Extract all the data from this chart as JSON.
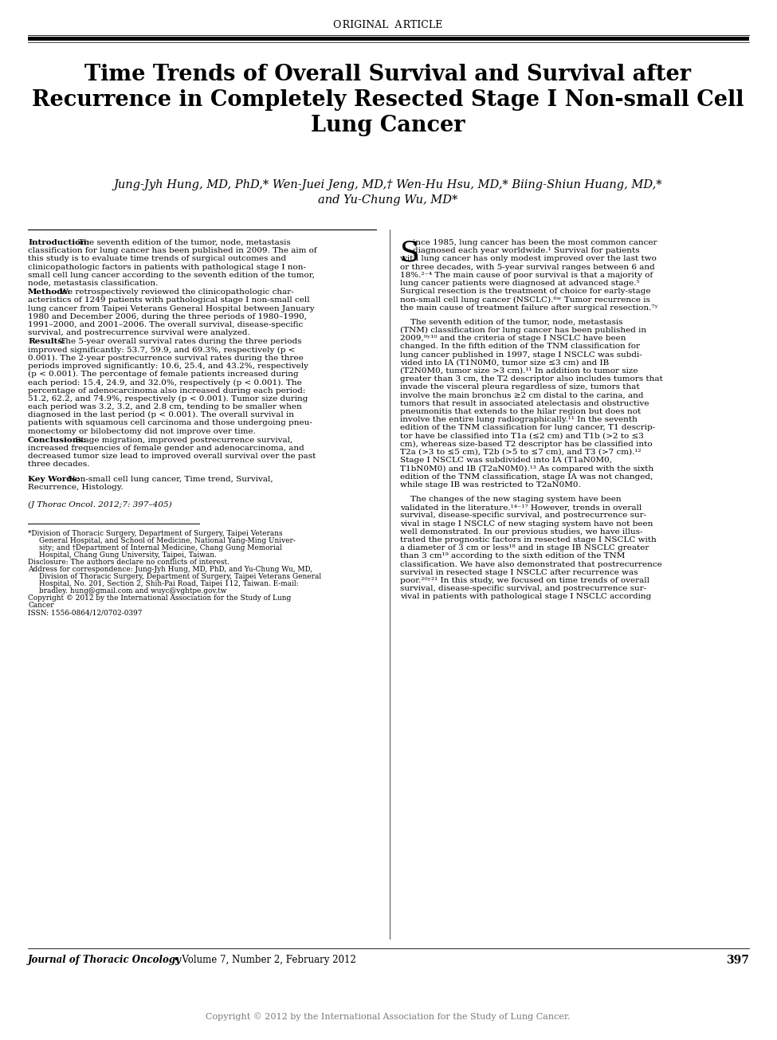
{
  "header_text": "Original Article",
  "title_line1": "Time Trends of Overall Survival and Survival after",
  "title_line2": "Recurrence in Completely Resected Stage I Non-small Cell",
  "title_line3": "Lung Cancer",
  "authors_line1": "Jung-Jyh Hung, MD, PhD,* Wen-Juei Jeng, MD,† Wen-Hu Hsu, MD,* Biing-Shiun Huang, MD,*",
  "authors_line2": "and Yu-Chung Wu, MD*",
  "footer_journal": "Journal of Thoracic Oncology",
  "footer_volume": " • Volume 7, Number 2, February 2012",
  "footer_page": "397",
  "copyright_text": "Copyright © 2012 by the International Association for the Study of Lung Cancer.",
  "lc_intro_bold": "Introduction:",
  "lc_intro_text": " The seventh edition of the tumor, node, metastasis classification for lung cancer has been published in 2009. The aim of this study is to evaluate time trends of surgical outcomes and clinicopathologic factors in patients with pathological stage I non-small cell lung cancer according to the seventh edition of the tumor, node, metastasis classification.",
  "lc_methods_bold": "Methods:",
  "lc_methods_text": " We retrospectively reviewed the clinicopathologic characteristics of 1249 patients with pathological stage I non-small cell lung cancer from Taipei Veterans General Hospital between January 1980 and December 2006, during the three periods of 1980–1990, 1991–2000, and 2001–2006. The overall survival, disease-specific survival, and postrecurrence survival were analyzed.",
  "lc_results_bold": "Results:",
  "lc_results_text": " The 5-year overall survival rates during the three periods improved significantly: 53.7, 59.9, and 69.3%, respectively (p < 0.001). The 2-year postrecurrence survival rates during the three periods improved significantly: 10.6, 25.4, and 43.2%, respectively (p < 0.001). The percentage of female patients increased during each period: 15.4, 24.9, and 32.0%, respectively (p < 0.001). The percentage of adenocarcinoma also increased during each period: 51.2, 62.2, and 74.9%, respectively (p < 0.001). Tumor size during each period was 3.2, 3.2, and 2.8 cm, tending to be smaller when diagnosed in the last period (p < 0.001). The overall survival in patients with squamous cell carcinoma and those undergoing pneumonectomy or bilobectomy did not improve over time.",
  "lc_concl_bold": "Conclusions:",
  "lc_concl_text": " Stage migration, improved postrecurrence survival, increased frequencies of female gender and adenocarcinoma, and decreased tumor size lead to improved overall survival over the past three decades.",
  "lc_kw_bold": "Key Words:",
  "lc_kw_text": " Non-small cell lung cancer, Time trend, Survival, Recurrence, Histology.",
  "lc_citation": "(J Thorac Oncol. 2012;7: 397–405)",
  "fn1_line1": "*Division of Thoracic Surgery, Department of Surgery, Taipei Veterans",
  "fn1_line2": "General Hospital, and School of Medicine, National Yang-Ming Univer-",
  "fn1_line3": "sity; and †Department of Internal Medicine, Chang Gung Memorial",
  "fn1_line4": "Hospital, Chang Gung University, Taipei, Taiwan.",
  "fn2": "Disclosure: The authors declare no conflicts of interest.",
  "fn3_line1": "Address for correspondence: Jung-Jyh Hung, MD, PhD, and Yu-Chung Wu, MD,",
  "fn3_line2": "Division of Thoracic Surgery, Department of Surgery, Taipei Veterans General",
  "fn3_line3": "Hospital, No. 201, Section 2, Shih-Pai Road, Taipei 112, Taiwan. E-mail:",
  "fn3_line4": "bradley. hung@gmail.com and wuyc@vghtpe.gov.tw",
  "fn4_line1": "Copyright © 2012 by the International Association for the Study of Lung",
  "fn4_line2": "Cancer",
  "fn5": "ISSN: 1556-0864/12/0702-0397",
  "rc_para1_drop": "S",
  "rc_para1_rest_line1": "ince 1985, lung cancer has been the most common cancer",
  "rc_para1_rest_line2": "diagnosed each year worldwide.¹ Survival for patients",
  "rc_para1_lines": [
    "with lung cancer has only modest improved over the last two",
    "or three decades, with 5-year survival ranges between 6 and",
    "18%.²⁻⁴ The main cause of poor survival is that a majority of",
    "lung cancer patients were diagnosed at advanced stage.⁵",
    "Surgical resection is the treatment of choice for early-stage",
    "non-small cell lung cancer (NSCLC).⁶ʷ Tumor recurrence is",
    "the main cause of treatment failure after surgical resection.⁷ʸ"
  ],
  "rc_para2_lines": [
    "    The seventh edition of the tumor, node, metastasis",
    "(TNM) classification for lung cancer has been published in",
    "2009,⁹ʸ¹⁰ and the criteria of stage I NSCLC have been",
    "changed. In the fifth edition of the TNM classification for",
    "lung cancer published in 1997, stage I NSCLC was subdi-",
    "vided into IA (T1N0M0, tumor size ≤3 cm) and IB",
    "(T2N0M0, tumor size >3 cm).¹¹ In addition to tumor size",
    "greater than 3 cm, the T2 descriptor also includes tumors that",
    "invade the visceral pleura regardless of size, tumors that",
    "involve the main bronchus ≥2 cm distal to the carina, and",
    "tumors that result in associated atelectasis and obstructive",
    "pneumonitis that extends to the hilar region but does not",
    "involve the entire lung radiographically.¹¹ In the seventh",
    "edition of the TNM classification for lung cancer, T1 descrip-",
    "tor have be classified into T1a (≤2 cm) and T1b (>2 to ≤3",
    "cm), whereas size-based T2 descriptor has be classified into",
    "T2a (>3 to ≤5 cm), T2b (>5 to ≤7 cm), and T3 (>7 cm).¹²",
    "Stage I NSCLC was subdivided into IA (T1aN0M0,",
    "T1bN0M0) and IB (T2aN0M0).¹³ As compared with the sixth",
    "edition of the TNM classification, stage IA was not changed,",
    "while stage IB was restricted to T2aN0M0."
  ],
  "rc_para3_lines": [
    "    The changes of the new staging system have been",
    "validated in the literature.¹⁴⁻¹⁷ However, trends in overall",
    "survival, disease-specific survival, and postrecurrence sur-",
    "vival in stage I NSCLC of new staging system have not been",
    "well demonstrated. In our previous studies, we have illus-",
    "trated the prognostic factors in resected stage I NSCLC with",
    "a diameter of 3 cm or less¹⁸ and in stage IB NSCLC greater",
    "than 3 cm¹⁹ according to the sixth edition of the TNM",
    "classification. We have also demonstrated that postrecurrence",
    "survival in resected stage I NSCLC after recurrence was",
    "poor.²⁰ʸ²¹ In this study, we focused on time trends of overall",
    "survival, disease-specific survival, and postrecurrence sur-",
    "vival in patients with pathological stage I NSCLC according"
  ]
}
